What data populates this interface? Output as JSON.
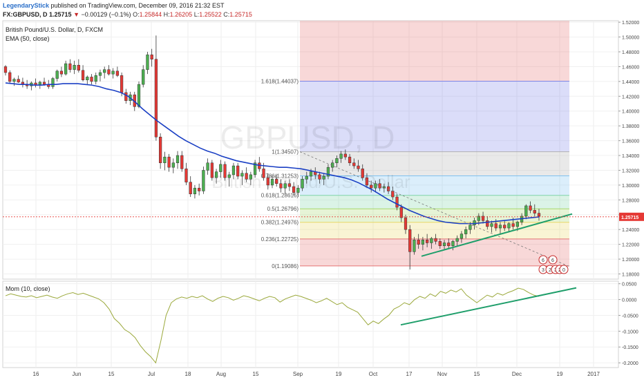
{
  "header": {
    "author": "LegendaryStick",
    "published_text": "published on TradingView.com, December 09, 2016 21:32 EST",
    "symbol_line": "FX:GBPUSD, D 1.25715",
    "change_arrow": "▼",
    "change_text": "−0.00129 (−0.1%)",
    "ohlc": [
      {
        "label": "O:",
        "value": "1.25844"
      },
      {
        "label": "H:",
        "value": "1.26205"
      },
      {
        "label": "L:",
        "value": "1.25522"
      },
      {
        "label": "C:",
        "value": "1.25715"
      }
    ]
  },
  "chart_data": [
    {
      "type": "candlestick",
      "title": "British Pound/U.S. Dollar, D, FXCM",
      "indicator_label": "EMA (50, close)",
      "watermark_symbol": "GBPUSD, D",
      "watermark_name": "British Pound/U.S. Dollar",
      "last_price": "1.25715",
      "ylim": [
        1.173,
        1.522
      ],
      "y_ticks": [
        "1.52000",
        "1.50000",
        "1.48000",
        "1.46000",
        "1.44000",
        "1.42000",
        "1.40000",
        "1.38000",
        "1.36000",
        "1.34000",
        "1.32000",
        "1.30000",
        "1.28000",
        "1.26000",
        "1.24000",
        "1.22000",
        "1.20000",
        "1.18000"
      ],
      "x_ticks": [
        "16",
        "Jun",
        "15",
        "Jul",
        "18",
        "Aug",
        "15",
        "Sep",
        "19",
        "Oct",
        "17",
        "Nov",
        "15",
        "Dec",
        "19",
        "2017"
      ],
      "fib_levels": [
        {
          "label": "1.618(1.44037)",
          "value": 1.44037
        },
        {
          "label": "1(1.34507)",
          "value": 1.34507
        },
        {
          "label": "0.786(1.31253)",
          "value": 1.31253
        },
        {
          "label": "0.618(1.28616)",
          "value": 1.28616
        },
        {
          "label": "0.5(1.26796)",
          "value": 1.26796
        },
        {
          "label": "0.382(1.24976)",
          "value": 1.24976
        },
        {
          "label": "0.236(1.22725)",
          "value": 1.22725
        },
        {
          "label": "0(1.19086)",
          "value": 1.19086
        }
      ],
      "fib_colors": [
        "#e57373",
        "#7e86e8",
        "#b0b0b0",
        "#7ec1ef",
        "#7fd4a8",
        "#a6d86a",
        "#e8d766",
        "#e57373"
      ],
      "ohlc": [
        [
          1.46,
          1.462,
          1.448,
          1.452
        ],
        [
          1.452,
          1.455,
          1.438,
          1.44
        ],
        [
          1.44,
          1.445,
          1.434,
          1.443
        ],
        [
          1.443,
          1.448,
          1.438,
          1.439
        ],
        [
          1.439,
          1.445,
          1.432,
          1.436
        ],
        [
          1.436,
          1.442,
          1.43,
          1.434
        ],
        [
          1.434,
          1.44,
          1.428,
          1.438
        ],
        [
          1.438,
          1.444,
          1.432,
          1.435
        ],
        [
          1.435,
          1.441,
          1.43,
          1.439
        ],
        [
          1.439,
          1.445,
          1.434,
          1.436
        ],
        [
          1.436,
          1.442,
          1.43,
          1.433
        ],
        [
          1.433,
          1.446,
          1.43,
          1.444
        ],
        [
          1.444,
          1.456,
          1.44,
          1.454
        ],
        [
          1.454,
          1.46,
          1.446,
          1.45
        ],
        [
          1.45,
          1.468,
          1.448,
          1.464
        ],
        [
          1.464,
          1.47,
          1.452,
          1.456
        ],
        [
          1.456,
          1.468,
          1.45,
          1.462
        ],
        [
          1.462,
          1.47,
          1.452,
          1.455
        ],
        [
          1.455,
          1.462,
          1.44,
          1.442
        ],
        [
          1.442,
          1.448,
          1.436,
          1.446
        ],
        [
          1.446,
          1.45,
          1.436,
          1.44
        ],
        [
          1.44,
          1.452,
          1.436,
          1.448
        ],
        [
          1.448,
          1.456,
          1.44,
          1.452
        ],
        [
          1.452,
          1.46,
          1.444,
          1.456
        ],
        [
          1.456,
          1.462,
          1.448,
          1.45
        ],
        [
          1.45,
          1.458,
          1.444,
          1.454
        ],
        [
          1.454,
          1.46,
          1.446,
          1.448
        ],
        [
          1.448,
          1.452,
          1.42,
          1.425
        ],
        [
          1.425,
          1.43,
          1.41,
          1.414
        ],
        [
          1.414,
          1.426,
          1.408,
          1.422
        ],
        [
          1.422,
          1.426,
          1.4,
          1.406
        ],
        [
          1.406,
          1.44,
          1.404,
          1.436
        ],
        [
          1.436,
          1.462,
          1.432,
          1.456
        ],
        [
          1.456,
          1.48,
          1.45,
          1.476
        ],
        [
          1.476,
          1.484,
          1.46,
          1.47
        ],
        [
          1.47,
          1.502,
          1.36,
          1.365
        ],
        [
          1.365,
          1.37,
          1.322,
          1.33
        ],
        [
          1.33,
          1.345,
          1.32,
          1.338
        ],
        [
          1.338,
          1.342,
          1.318,
          1.324
        ],
        [
          1.324,
          1.336,
          1.316,
          1.33
        ],
        [
          1.33,
          1.346,
          1.322,
          1.34
        ],
        [
          1.34,
          1.346,
          1.318,
          1.322
        ],
        [
          1.322,
          1.33,
          1.3,
          1.304
        ],
        [
          1.304,
          1.312,
          1.284,
          1.288
        ],
        [
          1.288,
          1.3,
          1.282,
          1.296
        ],
        [
          1.296,
          1.302,
          1.286,
          1.292
        ],
        [
          1.292,
          1.325,
          1.288,
          1.32
        ],
        [
          1.32,
          1.336,
          1.314,
          1.33
        ],
        [
          1.33,
          1.334,
          1.306,
          1.31
        ],
        [
          1.31,
          1.322,
          1.302,
          1.318
        ],
        [
          1.318,
          1.334,
          1.31,
          1.328
        ],
        [
          1.328,
          1.332,
          1.306,
          1.31
        ],
        [
          1.31,
          1.318,
          1.298,
          1.314
        ],
        [
          1.314,
          1.33,
          1.308,
          1.326
        ],
        [
          1.326,
          1.33,
          1.308,
          1.312
        ],
        [
          1.312,
          1.32,
          1.3,
          1.316
        ],
        [
          1.316,
          1.324,
          1.304,
          1.308
        ],
        [
          1.308,
          1.318,
          1.3,
          1.314
        ],
        [
          1.314,
          1.334,
          1.31,
          1.33
        ],
        [
          1.33,
          1.338,
          1.318,
          1.322
        ],
        [
          1.322,
          1.33,
          1.306,
          1.31
        ],
        [
          1.31,
          1.316,
          1.294,
          1.3
        ],
        [
          1.3,
          1.312,
          1.296,
          1.308
        ],
        [
          1.308,
          1.314,
          1.298,
          1.302
        ],
        [
          1.302,
          1.308,
          1.29,
          1.296
        ],
        [
          1.296,
          1.306,
          1.288,
          1.302
        ],
        [
          1.302,
          1.308,
          1.292,
          1.298
        ],
        [
          1.298,
          1.304,
          1.286,
          1.29
        ],
        [
          1.29,
          1.3,
          1.284,
          1.296
        ],
        [
          1.296,
          1.312,
          1.292,
          1.308
        ],
        [
          1.308,
          1.318,
          1.302,
          1.312
        ],
        [
          1.312,
          1.322,
          1.306,
          1.318
        ],
        [
          1.318,
          1.324,
          1.308,
          1.314
        ],
        [
          1.314,
          1.318,
          1.302,
          1.308
        ],
        [
          1.308,
          1.316,
          1.3,
          1.312
        ],
        [
          1.312,
          1.328,
          1.308,
          1.324
        ],
        [
          1.324,
          1.334,
          1.318,
          1.33
        ],
        [
          1.33,
          1.34,
          1.324,
          1.336
        ],
        [
          1.336,
          1.346,
          1.33,
          1.342
        ],
        [
          1.342,
          1.348,
          1.334,
          1.338
        ],
        [
          1.338,
          1.342,
          1.326,
          1.33
        ],
        [
          1.33,
          1.336,
          1.322,
          1.326
        ],
        [
          1.326,
          1.334,
          1.318,
          1.322
        ],
        [
          1.322,
          1.328,
          1.306,
          1.31
        ],
        [
          1.31,
          1.316,
          1.296,
          1.3
        ],
        [
          1.3,
          1.306,
          1.29,
          1.296
        ],
        [
          1.296,
          1.306,
          1.29,
          1.302
        ],
        [
          1.302,
          1.308,
          1.292,
          1.296
        ],
        [
          1.296,
          1.302,
          1.29,
          1.298
        ],
        [
          1.298,
          1.304,
          1.288,
          1.292
        ],
        [
          1.292,
          1.298,
          1.28,
          1.284
        ],
        [
          1.284,
          1.288,
          1.266,
          1.27
        ],
        [
          1.27,
          1.274,
          1.25,
          1.256
        ],
        [
          1.256,
          1.26,
          1.234,
          1.24
        ],
        [
          1.24,
          1.246,
          1.186,
          1.21
        ],
        [
          1.21,
          1.23,
          1.206,
          1.226
        ],
        [
          1.226,
          1.234,
          1.214,
          1.22
        ],
        [
          1.22,
          1.23,
          1.212,
          1.226
        ],
        [
          1.226,
          1.234,
          1.216,
          1.222
        ],
        [
          1.222,
          1.23,
          1.214,
          1.228
        ],
        [
          1.228,
          1.234,
          1.22,
          1.224
        ],
        [
          1.224,
          1.228,
          1.214,
          1.218
        ],
        [
          1.218,
          1.226,
          1.212,
          1.222
        ],
        [
          1.222,
          1.228,
          1.214,
          1.218
        ],
        [
          1.218,
          1.226,
          1.212,
          1.224
        ],
        [
          1.224,
          1.232,
          1.218,
          1.228
        ],
        [
          1.228,
          1.238,
          1.222,
          1.234
        ],
        [
          1.234,
          1.244,
          1.228,
          1.24
        ],
        [
          1.24,
          1.25,
          1.234,
          1.246
        ],
        [
          1.246,
          1.256,
          1.24,
          1.252
        ],
        [
          1.252,
          1.262,
          1.246,
          1.258
        ],
        [
          1.258,
          1.264,
          1.248,
          1.252
        ],
        [
          1.252,
          1.258,
          1.24,
          1.244
        ],
        [
          1.244,
          1.252,
          1.236,
          1.248
        ],
        [
          1.248,
          1.254,
          1.238,
          1.242
        ],
        [
          1.242,
          1.25,
          1.234,
          1.246
        ],
        [
          1.246,
          1.252,
          1.238,
          1.242
        ],
        [
          1.242,
          1.25,
          1.236,
          1.248
        ],
        [
          1.248,
          1.256,
          1.24,
          1.244
        ],
        [
          1.244,
          1.252,
          1.238,
          1.25
        ],
        [
          1.25,
          1.262,
          1.246,
          1.258
        ],
        [
          1.258,
          1.274,
          1.254,
          1.272
        ],
        [
          1.272,
          1.278,
          1.262,
          1.266
        ],
        [
          1.266,
          1.274,
          1.258,
          1.262
        ],
        [
          1.262,
          1.268,
          1.252,
          1.258
        ]
      ],
      "ema": [
        1.438,
        1.437,
        1.436,
        1.436,
        1.435,
        1.435,
        1.436,
        1.436,
        1.437,
        1.437,
        1.437,
        1.436,
        1.435,
        1.433,
        1.43,
        1.428,
        1.425,
        1.42,
        1.412,
        1.403,
        1.395,
        1.387,
        1.38,
        1.373,
        1.366,
        1.36,
        1.355,
        1.35,
        1.346,
        1.343,
        1.339,
        1.336,
        1.333,
        1.331,
        1.329,
        1.327,
        1.326,
        1.325,
        1.324,
        1.324,
        1.323,
        1.322,
        1.32,
        1.318,
        1.316,
        1.314,
        1.312,
        1.31,
        1.307,
        1.303,
        1.298,
        1.293,
        1.287,
        1.281,
        1.276,
        1.271,
        1.266,
        1.262,
        1.258,
        1.255,
        1.252,
        1.25,
        1.249,
        1.248,
        1.248,
        1.248,
        1.249,
        1.25,
        1.251,
        1.252,
        1.253,
        1.254,
        1.255,
        1.256,
        1.257
      ],
      "trendline_price": {
        "from": [
          1.204
        ],
        "to": [
          1.261
        ]
      },
      "fib_guide": {
        "from": [
          1.345
        ],
        "to": [
          1.19
        ]
      },
      "markers": [
        "6",
        "6",
        "3",
        "2",
        "3",
        "2",
        "0"
      ]
    },
    {
      "type": "line",
      "title": "Mom (10, close)",
      "ylim": [
        -0.215,
        0.058
      ],
      "y_ticks": [
        "0.0500",
        "0.0000",
        "-0.0500",
        "-0.1000",
        "-0.1500",
        "-0.2000"
      ],
      "values": [
        0.012,
        0.018,
        0.014,
        0.01,
        0.008,
        0.012,
        0.006,
        0.01,
        0.014,
        0.008,
        0.004,
        0.012,
        0.018,
        0.022,
        0.016,
        0.02,
        0.014,
        0.008,
        0.002,
        -0.01,
        -0.03,
        -0.06,
        -0.075,
        -0.095,
        -0.105,
        -0.12,
        -0.145,
        -0.165,
        -0.18,
        -0.2,
        -0.13,
        -0.05,
        -0.01,
        0.002,
        0.008,
        0.004,
        0.01,
        0.006,
        0.012,
        0.002,
        -0.006,
        0.004,
        0.01,
        0.006,
        -0.002,
        0.004,
        0.012,
        0.008,
        0.002,
        -0.004,
        0.004,
        0.01,
        0.006,
        -0.008,
        0.002,
        0.008,
        0.014,
        0.01,
        0.004,
        -0.002,
        -0.01,
        -0.004,
        0.004,
        -0.006,
        -0.016,
        -0.01,
        -0.024,
        -0.032,
        -0.04,
        -0.06,
        -0.08,
        -0.068,
        -0.076,
        -0.062,
        -0.05,
        -0.03,
        -0.022,
        -0.01,
        -0.016,
        0.0,
        0.01,
        0.004,
        0.018,
        0.01,
        0.026,
        0.02,
        0.03,
        0.024,
        0.034,
        0.014,
        0.002,
        -0.01,
        0.002,
        0.014,
        0.008,
        0.02,
        0.014,
        0.022,
        0.028,
        0.036,
        0.032,
        0.022,
        0.014,
        0.01
      ],
      "trendline": {
        "from": [
          -0.08
        ],
        "to": [
          0.037
        ]
      }
    }
  ]
}
